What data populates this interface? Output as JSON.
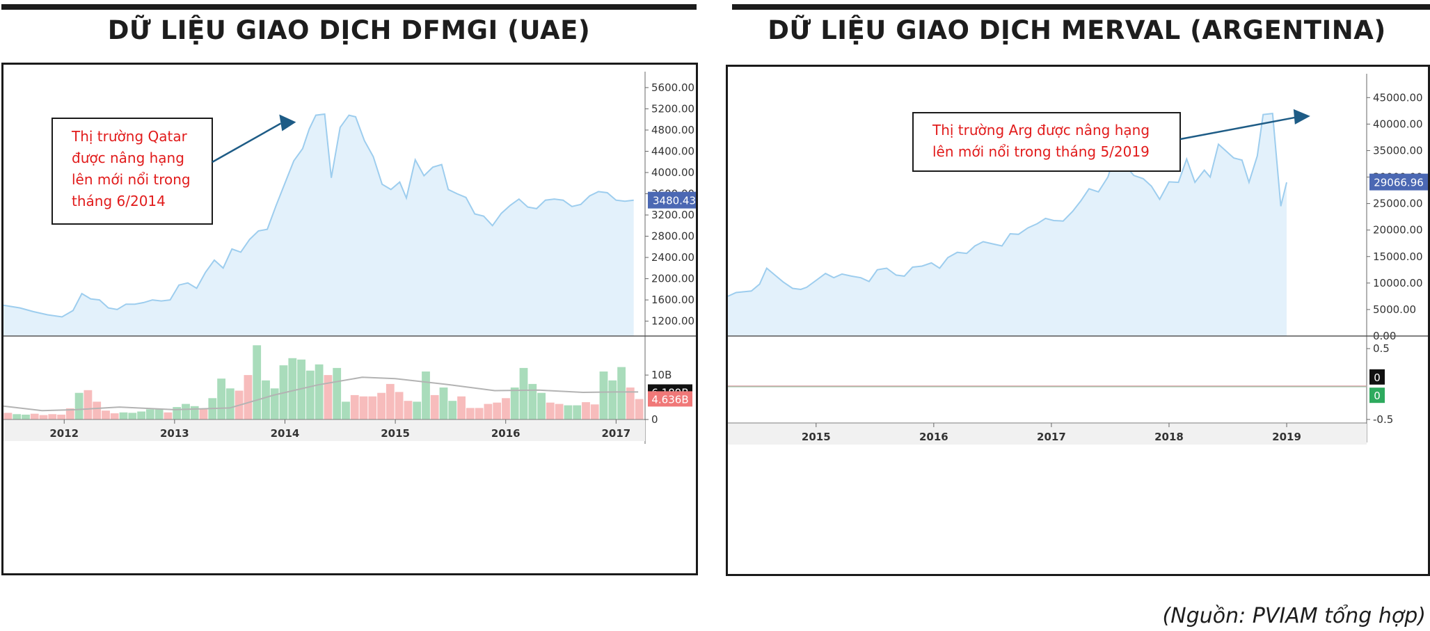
{
  "chart_data": [
    {
      "type": "line",
      "title": "DỮ LIỆU GIAO DỊCH DFMGI (UAE)",
      "price_ticks": [
        "5600.00",
        "5200.00",
        "4800.00",
        "4400.00",
        "4000.00",
        "3600.00",
        "3200.00",
        "2800.00",
        "2400.00",
        "2000.00",
        "1600.00",
        "1200.00"
      ],
      "price_tick_values": [
        5600,
        5200,
        4800,
        4400,
        4000,
        3600,
        3200,
        2800,
        2400,
        2000,
        1600,
        1200
      ],
      "price_ylim": [
        920,
        5900
      ],
      "x_ticks": [
        "2012",
        "2013",
        "2014",
        "2015",
        "2016",
        "2017"
      ],
      "x_tick_values": [
        2012,
        2013,
        2014,
        2015,
        2016,
        2017
      ],
      "x_range": [
        2011.45,
        2017.25
      ],
      "last_price_label": "3480.43",
      "last_price_value": 3480,
      "annotation": {
        "lines": [
          "Thị trường Qatar",
          "được nâng hạng",
          "lên mới nổi trong",
          "tháng 6/2014"
        ],
        "arrow_to": [
          2014.1,
          4950
        ]
      },
      "series": [
        {
          "x": [
            2011.45,
            2011.6,
            2011.72,
            2011.85,
            2011.98,
            2012.08,
            2012.16,
            2012.24,
            2012.32,
            2012.4,
            2012.48,
            2012.56,
            2012.64,
            2012.72,
            2012.8,
            2012.88,
            2012.96,
            2013.04,
            2013.12,
            2013.2,
            2013.28,
            2013.36,
            2013.44,
            2013.52,
            2013.6,
            2013.68,
            2013.76,
            2013.84,
            2013.92,
            2014.0,
            2014.08,
            2014.16,
            2014.22,
            2014.28,
            2014.36,
            2014.42,
            2014.5,
            2014.58,
            2014.64,
            2014.72,
            2014.8,
            2014.88,
            2014.96,
            2015.04,
            2015.1,
            2015.18,
            2015.26,
            2015.34,
            2015.42,
            2015.48,
            2015.56,
            2015.64,
            2015.72,
            2015.8,
            2015.88,
            2015.96,
            2016.04,
            2016.12,
            2016.2,
            2016.28,
            2016.36,
            2016.44,
            2016.52,
            2016.6,
            2016.68,
            2016.76,
            2016.84,
            2016.92,
            2017.0,
            2017.08,
            2017.16
          ],
          "values": [
            1500,
            1450,
            1380,
            1320,
            1280,
            1400,
            1720,
            1620,
            1600,
            1450,
            1420,
            1520,
            1520,
            1550,
            1600,
            1580,
            1600,
            1880,
            1920,
            1820,
            2120,
            2350,
            2200,
            2560,
            2500,
            2740,
            2900,
            2930,
            3380,
            3800,
            4220,
            4450,
            4820,
            5080,
            5100,
            3900,
            4850,
            5080,
            5050,
            4600,
            4300,
            3780,
            3680,
            3820,
            3520,
            4240,
            3940,
            4100,
            4150,
            3680,
            3600,
            3530,
            3220,
            3180,
            3000,
            3230,
            3380,
            3500,
            3350,
            3320,
            3480,
            3500,
            3480,
            3360,
            3400,
            3560,
            3640,
            3620,
            3480,
            3460,
            3480
          ]
        }
      ],
      "volume_ticks": [
        "10B",
        "0"
      ],
      "volume_tick_values": [
        10,
        0
      ],
      "volume_ylim": [
        0,
        18
      ],
      "volume_labels": [
        {
          "text": "6.189B",
          "value": 6.189,
          "color": "#111111"
        },
        {
          "text": "4.636B",
          "value": 4.636,
          "color": "#f07878"
        }
      ],
      "volume_colors": {
        "up": "#a9dcbb",
        "down": "#f7bcbc"
      },
      "volume": [
        {
          "v": 1.5,
          "d": "down"
        },
        {
          "v": 1.2,
          "d": "up"
        },
        {
          "v": 1.1,
          "d": "up"
        },
        {
          "v": 1.3,
          "d": "down"
        },
        {
          "v": 1.0,
          "d": "down"
        },
        {
          "v": 1.2,
          "d": "down"
        },
        {
          "v": 1.1,
          "d": "down"
        },
        {
          "v": 2.5,
          "d": "down"
        },
        {
          "v": 6.0,
          "d": "up"
        },
        {
          "v": 6.6,
          "d": "down"
        },
        {
          "v": 4.0,
          "d": "down"
        },
        {
          "v": 2.0,
          "d": "down"
        },
        {
          "v": 1.4,
          "d": "down"
        },
        {
          "v": 1.6,
          "d": "up"
        },
        {
          "v": 1.5,
          "d": "up"
        },
        {
          "v": 1.8,
          "d": "up"
        },
        {
          "v": 2.3,
          "d": "up"
        },
        {
          "v": 2.4,
          "d": "up"
        },
        {
          "v": 1.6,
          "d": "down"
        },
        {
          "v": 2.8,
          "d": "up"
        },
        {
          "v": 3.5,
          "d": "up"
        },
        {
          "v": 3.0,
          "d": "up"
        },
        {
          "v": 2.3,
          "d": "down"
        },
        {
          "v": 4.8,
          "d": "up"
        },
        {
          "v": 9.2,
          "d": "up"
        },
        {
          "v": 7.0,
          "d": "up"
        },
        {
          "v": 6.5,
          "d": "down"
        },
        {
          "v": 10.0,
          "d": "down"
        },
        {
          "v": 16.7,
          "d": "up"
        },
        {
          "v": 8.8,
          "d": "up"
        },
        {
          "v": 7.0,
          "d": "up"
        },
        {
          "v": 12.2,
          "d": "up"
        },
        {
          "v": 13.8,
          "d": "up"
        },
        {
          "v": 13.5,
          "d": "up"
        },
        {
          "v": 11.0,
          "d": "up"
        },
        {
          "v": 12.4,
          "d": "up"
        },
        {
          "v": 10.0,
          "d": "down"
        },
        {
          "v": 11.6,
          "d": "up"
        },
        {
          "v": 4.0,
          "d": "up"
        },
        {
          "v": 5.5,
          "d": "down"
        },
        {
          "v": 5.2,
          "d": "down"
        },
        {
          "v": 5.2,
          "d": "down"
        },
        {
          "v": 6.0,
          "d": "down"
        },
        {
          "v": 8.0,
          "d": "down"
        },
        {
          "v": 6.2,
          "d": "down"
        },
        {
          "v": 4.2,
          "d": "down"
        },
        {
          "v": 4.0,
          "d": "up"
        },
        {
          "v": 10.8,
          "d": "up"
        },
        {
          "v": 5.5,
          "d": "down"
        },
        {
          "v": 7.2,
          "d": "up"
        },
        {
          "v": 4.2,
          "d": "up"
        },
        {
          "v": 5.2,
          "d": "down"
        },
        {
          "v": 2.6,
          "d": "down"
        },
        {
          "v": 2.6,
          "d": "down"
        },
        {
          "v": 3.5,
          "d": "down"
        },
        {
          "v": 3.8,
          "d": "down"
        },
        {
          "v": 4.8,
          "d": "down"
        },
        {
          "v": 7.2,
          "d": "up"
        },
        {
          "v": 11.6,
          "d": "up"
        },
        {
          "v": 8.0,
          "d": "up"
        },
        {
          "v": 6.0,
          "d": "up"
        },
        {
          "v": 3.8,
          "d": "down"
        },
        {
          "v": 3.5,
          "d": "down"
        },
        {
          "v": 3.2,
          "d": "up"
        },
        {
          "v": 3.2,
          "d": "up"
        },
        {
          "v": 3.9,
          "d": "down"
        },
        {
          "v": 3.4,
          "d": "down"
        },
        {
          "v": 10.8,
          "d": "up"
        },
        {
          "v": 8.8,
          "d": "up"
        },
        {
          "v": 11.8,
          "d": "up"
        },
        {
          "v": 7.2,
          "d": "down"
        },
        {
          "v": 4.6,
          "d": "down"
        }
      ],
      "volume_ma": {
        "x": [
          2011.45,
          2011.8,
          2012.1,
          2012.5,
          2013.0,
          2013.5,
          2013.9,
          2014.3,
          2014.7,
          2015.0,
          2015.5,
          2015.9,
          2016.3,
          2016.7,
          2017.0,
          2017.2
        ],
        "values": [
          3.0,
          2.0,
          2.2,
          2.8,
          2.2,
          2.6,
          5.5,
          7.8,
          9.5,
          9.2,
          7.8,
          6.5,
          6.6,
          6.1,
          6.2,
          6.2
        ]
      }
    },
    {
      "type": "line",
      "title": "DỮ LIỆU GIAO DỊCH MERVAL (ARGENTINA)",
      "price_ticks": [
        "45000.00",
        "40000.00",
        "35000.00",
        "30000.00",
        "25000.00",
        "20000.00",
        "15000.00",
        "10000.00",
        "5000.00",
        "0.00"
      ],
      "price_tick_values": [
        45000,
        40000,
        35000,
        30000,
        25000,
        20000,
        15000,
        10000,
        5000,
        0
      ],
      "price_ylim": [
        0,
        49500
      ],
      "x_ticks": [
        "2015",
        "2016",
        "2017",
        "2018",
        "2019"
      ],
      "x_tick_values": [
        2015,
        2016,
        2017,
        2018,
        2019
      ],
      "x_range": [
        2014.25,
        2019.68
      ],
      "last_price_label": "29066.96",
      "last_price_value": 29067,
      "annotation": {
        "lines": [
          "Thị trường Arg được nâng hạng",
          "lên mới nổi trong tháng 5/2019"
        ],
        "arrow_to": [
          2019.2,
          41500
        ]
      },
      "series": [
        {
          "x": [
            2014.25,
            2014.32,
            2014.45,
            2014.52,
            2014.58,
            2014.65,
            2014.72,
            2014.8,
            2014.87,
            2014.92,
            2015.0,
            2015.08,
            2015.15,
            2015.22,
            2015.3,
            2015.38,
            2015.45,
            2015.52,
            2015.6,
            2015.68,
            2015.75,
            2015.82,
            2015.9,
            2015.98,
            2016.05,
            2016.12,
            2016.2,
            2016.28,
            2016.35,
            2016.42,
            2016.5,
            2016.58,
            2016.65,
            2016.72,
            2016.8,
            2016.88,
            2016.95,
            2017.02,
            2017.1,
            2017.18,
            2017.25,
            2017.32,
            2017.4,
            2017.48,
            2017.55,
            2017.62,
            2017.7,
            2017.78,
            2017.85,
            2017.92,
            2018.0,
            2018.08,
            2018.15,
            2018.22,
            2018.3,
            2018.35,
            2018.42,
            2018.48,
            2018.55,
            2018.62,
            2018.68,
            2018.75,
            2018.8,
            2018.88,
            2018.95,
            2019.0,
            2019.08,
            2019.15,
            2019.2,
            2019.28,
            2019.35,
            2019.42,
            2019.48,
            2019.55,
            2019.62
          ],
          "values": [
            7500,
            8200,
            8500,
            9800,
            12800,
            11500,
            10200,
            9000,
            8800,
            9200,
            10500,
            11800,
            11000,
            11700,
            11300,
            11000,
            10300,
            12500,
            12800,
            11500,
            11300,
            13000,
            13200,
            13800,
            12800,
            14800,
            15800,
            15600,
            17000,
            17800,
            17400,
            17000,
            19300,
            19200,
            20400,
            21200,
            22200,
            21800,
            21700,
            23500,
            25500,
            27800,
            27200,
            30000,
            34800,
            32400,
            30300,
            29700,
            28300,
            25800,
            29100,
            29000,
            33400,
            29000,
            31300,
            30000,
            36200,
            35000,
            33600,
            33200,
            29000,
            34000,
            41800,
            42000,
            24500,
            29000,
            29000,
            29000,
            29000,
            29000,
            29000,
            29000,
            29000,
            29000,
            29000
          ]
        }
      ],
      "osc_ticks": [
        "0.5",
        "-0.5"
      ],
      "osc_tick_values": [
        0.5,
        -0.5
      ],
      "osc_ylim": [
        -0.55,
        0.55
      ],
      "osc_labels": [
        {
          "text": "0",
          "value": 0.1,
          "color": "#111111"
        },
        {
          "text": "0",
          "value": -0.1,
          "color": "#2eaa5e"
        }
      ],
      "osc_line_value": 0
    }
  ],
  "source_note": "(Nguồn: PVIAM tổng hợp)"
}
